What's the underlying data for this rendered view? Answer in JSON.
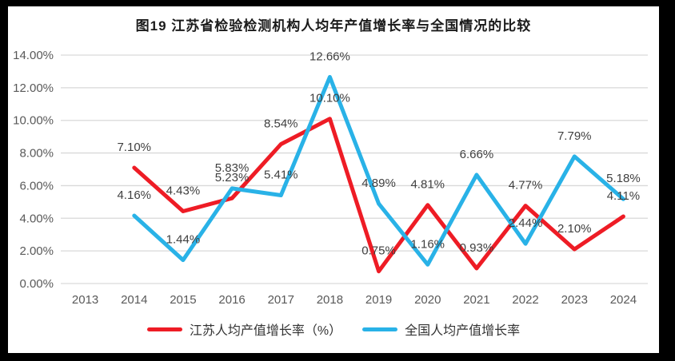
{
  "title": "图19 江苏省检验检测机构人均年产值增长率与全国情况的比较",
  "frame": {
    "border_color": "#000000",
    "background_color": "#ffffff"
  },
  "chart_data": {
    "type": "line",
    "categories": [
      "2013",
      "2014",
      "2015",
      "2016",
      "2017",
      "2018",
      "2019",
      "2020",
      "2021",
      "2022",
      "2023",
      "2024"
    ],
    "series": [
      {
        "name": "江苏人均产值增长率（%）",
        "color": "#ee1c25",
        "values": [
          null,
          7.1,
          4.43,
          5.23,
          8.54,
          10.1,
          0.75,
          4.81,
          0.93,
          4.77,
          2.1,
          4.11
        ],
        "data_labels": [
          null,
          "7.10%",
          "4.43%",
          "5.23%",
          "8.54%",
          "10.10%",
          "0.75%",
          "4.81%",
          "0.93%",
          "4.77%",
          "2.10%",
          "4.11%"
        ]
      },
      {
        "name": "全国人均产值增长率",
        "color": "#29b2e7",
        "values": [
          null,
          4.16,
          1.44,
          5.83,
          5.41,
          12.66,
          4.89,
          1.16,
          6.66,
          2.44,
          7.79,
          5.18
        ],
        "data_labels": [
          null,
          "4.16%",
          "1.44%",
          "5.83%",
          "5.41%",
          "12.66%",
          "4.89%",
          "1.16%",
          "6.66%",
          "2.44%",
          "7.79%",
          "5.18%"
        ]
      }
    ],
    "yticks": [
      "14.00%",
      "12.00%",
      "10.00%",
      "8.00%",
      "6.00%",
      "4.00%",
      "2.00%",
      "0.00%"
    ],
    "ylim": [
      0,
      14
    ],
    "xlabel": "",
    "ylabel": "",
    "grid": true,
    "grid_color": "#d9d9d9",
    "axis_text_color": "#595959",
    "data_label_color": "#3f3f3f",
    "legend_position": "bottom"
  }
}
